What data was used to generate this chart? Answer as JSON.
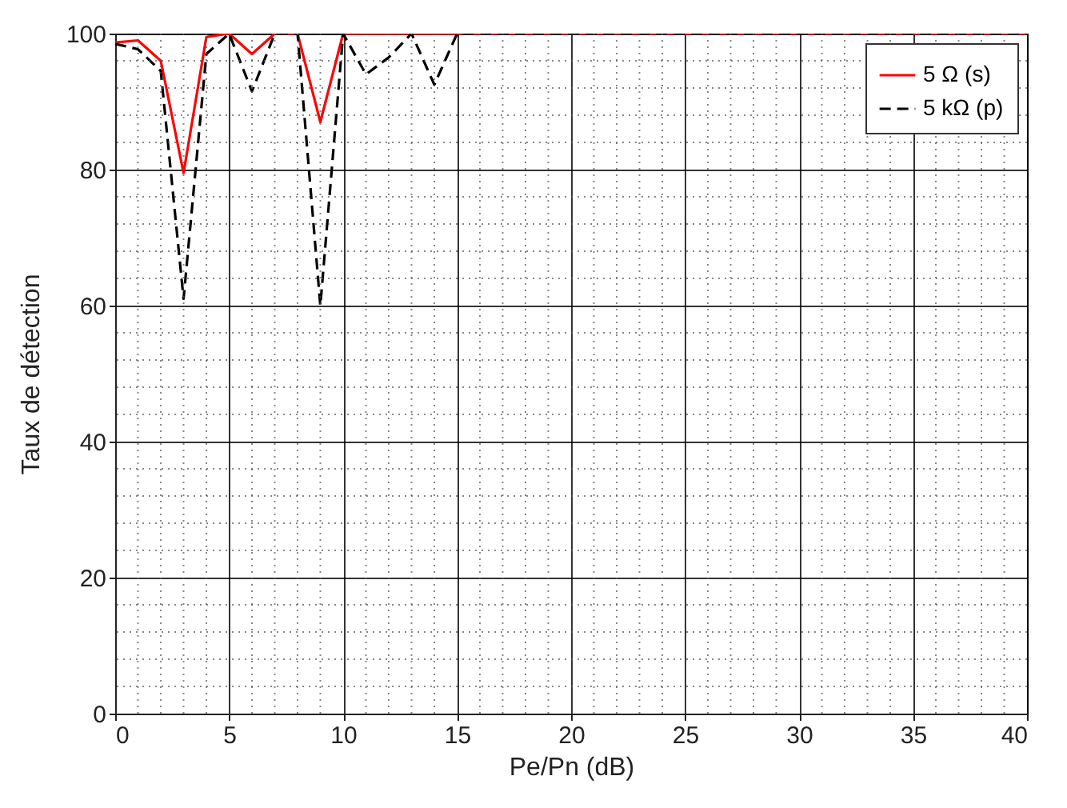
{
  "chart_data": {
    "type": "line",
    "xlabel": "Pe/Pn (dB)",
    "ylabel": "Taux de détection",
    "x": [
      0,
      1,
      2,
      3,
      4,
      5,
      6,
      7,
      8,
      9,
      10,
      11,
      12,
      13,
      14,
      15,
      16,
      17,
      18,
      19,
      20,
      21,
      22,
      23,
      24,
      25,
      26,
      27,
      28,
      29,
      30,
      31,
      32,
      33,
      34,
      35,
      36,
      37,
      38,
      39,
      40
    ],
    "series": [
      {
        "name": "5 Ω (s)",
        "color": "#ff0000",
        "line_style": "solid",
        "values": [
          98.7,
          99,
          96,
          79.5,
          99.5,
          100,
          97,
          100,
          100,
          87,
          100,
          100,
          100,
          100,
          100,
          100,
          100,
          100,
          100,
          100,
          100,
          100,
          100,
          100,
          100,
          100,
          100,
          100,
          100,
          100,
          100,
          100,
          100,
          100,
          100,
          100,
          100,
          100,
          100,
          100,
          100
        ]
      },
      {
        "name": "5 kΩ (p)",
        "color": "#000000",
        "line_style": "dashed",
        "values": [
          98.5,
          97.7,
          94.5,
          61,
          97,
          100,
          91.5,
          100,
          100,
          60,
          100,
          94,
          96.5,
          100,
          92.5,
          100,
          100,
          100,
          100,
          100,
          100,
          100,
          100,
          100,
          100,
          100,
          100,
          100,
          100,
          100,
          100,
          100,
          100,
          100,
          100,
          100,
          100,
          100,
          100,
          100,
          100
        ]
      }
    ],
    "xlim": [
      0,
      40
    ],
    "xticks": [
      0,
      5,
      10,
      15,
      20,
      25,
      30,
      35,
      40
    ],
    "ylim": [
      0,
      100
    ],
    "yticks": [
      0,
      20,
      40,
      60,
      80,
      100
    ],
    "grid": true,
    "legend": "top right",
    "marker": "none"
  }
}
